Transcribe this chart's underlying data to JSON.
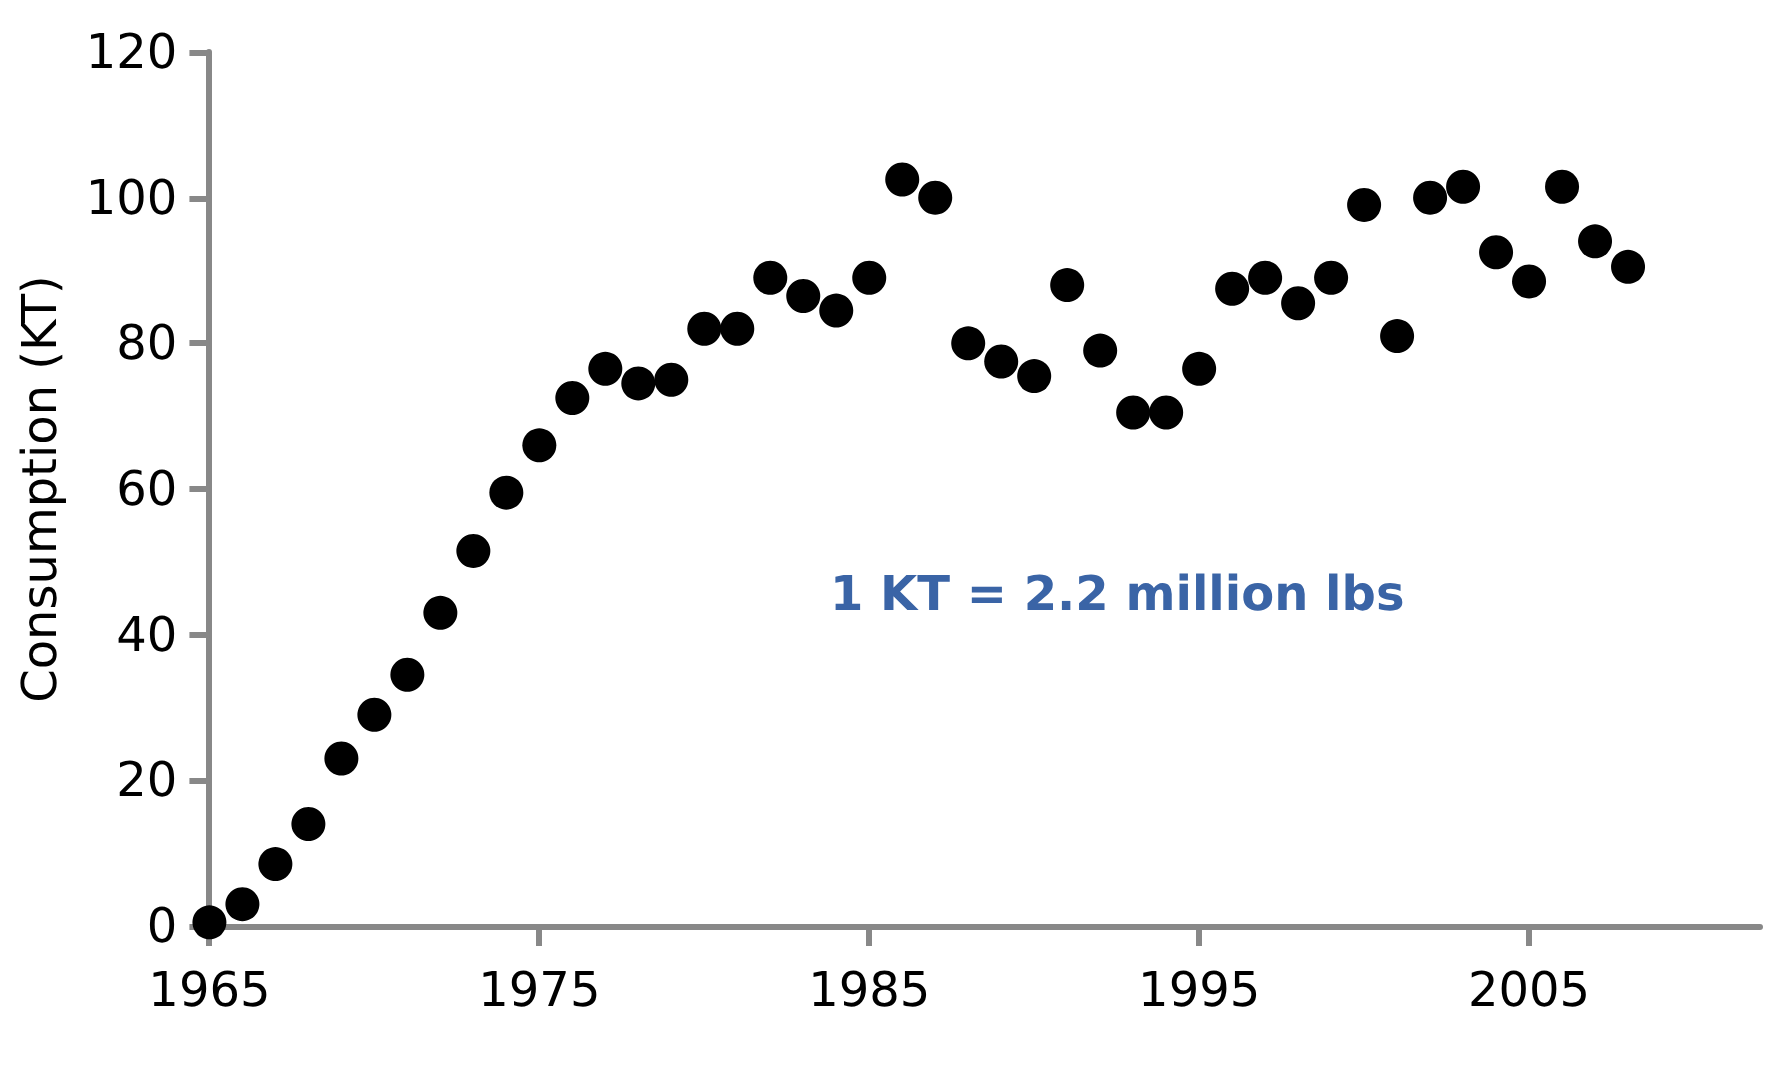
{
  "chart_data": {
    "type": "scatter",
    "ylabel": "Consumption (KT)",
    "x": [
      1965,
      1966,
      1967,
      1968,
      1969,
      1970,
      1971,
      1972,
      1973,
      1974,
      1975,
      1976,
      1977,
      1978,
      1979,
      1980,
      1981,
      1982,
      1983,
      1984,
      1985,
      1986,
      1987,
      1988,
      1989,
      1990,
      1991,
      1992,
      1993,
      1994,
      1995,
      1996,
      1997,
      1998,
      1999,
      2000,
      2001,
      2002,
      2003,
      2004,
      2005,
      2006,
      2007,
      2008
    ],
    "series": [
      {
        "color": "#000000",
        "values": [
          0.5,
          3,
          8.5,
          14,
          23,
          29,
          34.5,
          43,
          51.5,
          59.5,
          66,
          72.5,
          76.5,
          74.5,
          75,
          82,
          82,
          89,
          86.5,
          84.5,
          89,
          102.5,
          100,
          80,
          77.5,
          75.5,
          88,
          79,
          70.5,
          70.5,
          76.5,
          87.5,
          89,
          85.5,
          89,
          99,
          81,
          100,
          101.5,
          92.5,
          88.5,
          101.5,
          94,
          90.5
        ]
      }
    ],
    "xlim": [
      1965,
      2012
    ],
    "xticks": [
      1965,
      1975,
      1985,
      1995,
      2005
    ],
    "ylim": [
      0,
      120
    ],
    "yticks": [
      0,
      20,
      40,
      60,
      80,
      100,
      120
    ],
    "grid": false,
    "marker": "circle",
    "annotations": [
      "1 KT = 2.2 million lbs"
    ]
  }
}
